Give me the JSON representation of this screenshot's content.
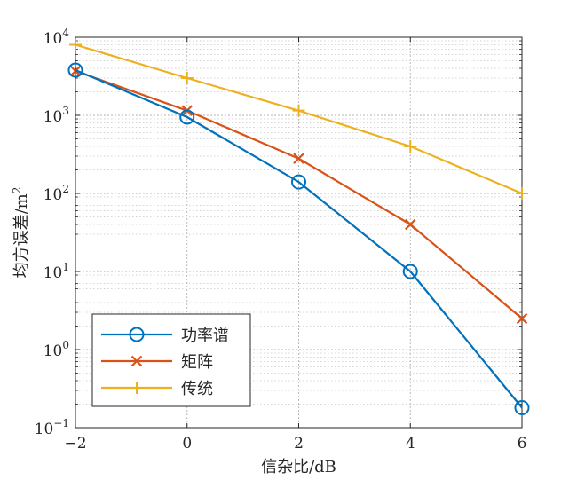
{
  "chart_data": {
    "type": "line",
    "xlabel": "信杂比/dB",
    "ylabel": "均方误差/m²",
    "ylabel_base": "均方误差/m",
    "ylabel_sup": "2",
    "xlim": [
      -2,
      6
    ],
    "ylim": [
      0.1,
      10000
    ],
    "yscale": "log",
    "grid": true,
    "xticks": [
      -2,
      0,
      2,
      4,
      6
    ],
    "xtick_labels": [
      "−2",
      "0",
      "2",
      "4",
      "6"
    ],
    "yticks": [
      0.1,
      1,
      10,
      100,
      1000,
      10000
    ],
    "ytick_base": "10",
    "ytick_exponents": [
      "−1",
      "0",
      "1",
      "2",
      "3",
      "4"
    ],
    "legend_position": "bottom-left",
    "x": [
      -2,
      0,
      2,
      4,
      6
    ],
    "series": [
      {
        "name": "功率谱",
        "values": [
          3800,
          950,
          140,
          10,
          0.18
        ],
        "color": "#0072BD",
        "marker": "circle"
      },
      {
        "name": "矩阵",
        "values": [
          3700,
          1150,
          280,
          40,
          2.5
        ],
        "color": "#D95319",
        "marker": "x"
      },
      {
        "name": "传统",
        "values": [
          8000,
          3000,
          1150,
          400,
          100
        ],
        "color": "#EDB120",
        "marker": "plus"
      }
    ]
  }
}
